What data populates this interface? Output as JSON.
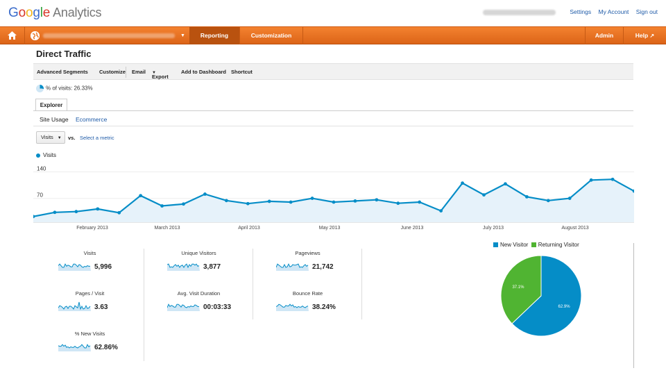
{
  "header": {
    "logo_google": "Google",
    "logo_analytics": "Analytics",
    "links": [
      "Settings",
      "My Account",
      "Sign out"
    ]
  },
  "nav": {
    "tabs": [
      "Reporting",
      "Customization"
    ],
    "right_tabs": [
      "Admin",
      "Help"
    ],
    "icons": [
      "home-icon",
      "globe-icon",
      "chevron-down-icon",
      "external-link-icon"
    ],
    "accent": "#e8731f",
    "active_color": "#b9520f"
  },
  "page": {
    "title": "Direct Traffic",
    "toolbar": [
      "Advanced Segments",
      "Customize",
      "Email",
      "Export",
      "Add to Dashboard",
      "Shortcut"
    ],
    "pct_visits": "% of visits: 26.33%",
    "explorer_tab": "Explorer",
    "subtabs": [
      "Site Usage",
      "Ecommerce"
    ],
    "metric_select": "Visits",
    "vs": "vs.",
    "select_metric": "Select a metric"
  },
  "chart_data": [
    {
      "type": "line",
      "series": [
        {
          "name": "Visits",
          "values": [
            15,
            26,
            28,
            35,
            25,
            70,
            43,
            48,
            74,
            57,
            49,
            55,
            53,
            63,
            53,
            56,
            59,
            50,
            53,
            30,
            103,
            72,
            101,
            67,
            57,
            63,
            111,
            113,
            82
          ]
        }
      ],
      "y_ticks": [
        70,
        140
      ],
      "ylim": [
        0,
        150
      ],
      "x_ticks": [
        "February 2013",
        "March 2013",
        "April 2013",
        "May 2013",
        "June 2013",
        "July 2013",
        "August 2013"
      ],
      "color": "#058dc7",
      "fill": "#e6f2fa"
    },
    {
      "type": "pie",
      "labels": [
        "New Visitor",
        "Returning Visitor"
      ],
      "values": [
        62.9,
        37.1
      ],
      "slice_labels": [
        "62.9%",
        "37.1%"
      ],
      "colors": [
        "#058dc7",
        "#50b432"
      ]
    }
  ],
  "scorecards": [
    {
      "label": "Visits",
      "value": "5,996"
    },
    {
      "label": "Unique Visitors",
      "value": "3,877"
    },
    {
      "label": "Pageviews",
      "value": "21,742"
    },
    {
      "label": "Pages / Visit",
      "value": "3.63"
    },
    {
      "label": "Avg. Visit Duration",
      "value": "00:03:33"
    },
    {
      "label": "Bounce Rate",
      "value": "38.24%"
    },
    {
      "label": "% New Visits",
      "value": "62.86%"
    }
  ]
}
